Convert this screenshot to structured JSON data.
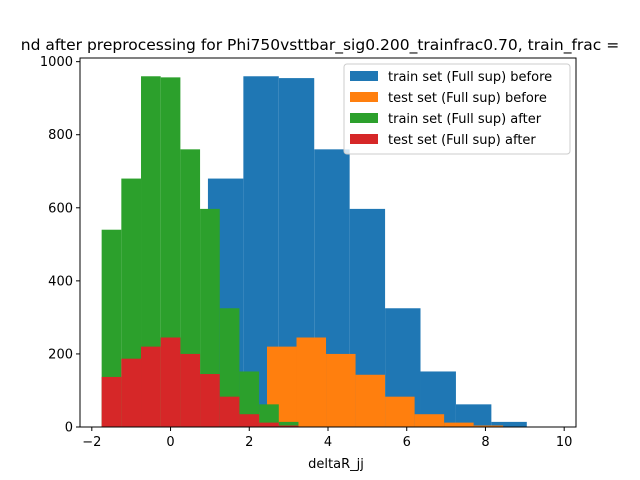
{
  "chart_data": {
    "type": "bar",
    "title": "nd after preprocessing for Phi750vsttbar_sig0.200_trainfrac0.70, train_frac =",
    "xlabel": "deltaR_jj",
    "ylabel": "",
    "xlim": [
      -2.3,
      10.3
    ],
    "ylim": [
      0,
      1010
    ],
    "xticks": [
      -2,
      0,
      2,
      4,
      6,
      8,
      10
    ],
    "yticks": [
      0,
      200,
      400,
      600,
      800,
      1000
    ],
    "grid": false,
    "legend_position": "top-right",
    "series": [
      {
        "name": "train set (Full sup) before",
        "color": "#1f77b4",
        "bin_edges": [
          0.95,
          1.85,
          2.75,
          3.65,
          4.55,
          5.45,
          6.35,
          7.25,
          8.15,
          9.05,
          9.95
        ],
        "values": [
          680,
          960,
          955,
          760,
          597,
          325,
          152,
          62,
          14,
          1
        ]
      },
      {
        "name": "test set (Full sup) before",
        "color": "#ff7f0e",
        "bin_edges": [
          1.7,
          2.45,
          3.2,
          3.95,
          4.7,
          5.45,
          6.2,
          6.95,
          7.7,
          8.45,
          9.2,
          9.95
        ],
        "values": [
          40,
          220,
          245,
          200,
          143,
          83,
          35,
          12,
          4,
          1,
          0
        ]
      },
      {
        "name": "train set (Full sup) after",
        "color": "#2ca02c",
        "bin_edges": [
          -1.75,
          -1.25,
          -0.75,
          -0.25,
          0.25,
          0.75,
          1.25,
          1.75,
          2.25,
          2.75,
          3.25
        ],
        "values": [
          540,
          680,
          960,
          957,
          760,
          597,
          325,
          152,
          62,
          14
        ]
      },
      {
        "name": "test set (Full sup) after",
        "color": "#d62728",
        "bin_edges": [
          -1.75,
          -1.25,
          -0.75,
          -0.25,
          0.25,
          0.75,
          1.25,
          1.75,
          2.25,
          2.75,
          3.25
        ],
        "values": [
          137,
          187,
          220,
          245,
          200,
          145,
          83,
          35,
          12,
          4
        ]
      }
    ]
  }
}
